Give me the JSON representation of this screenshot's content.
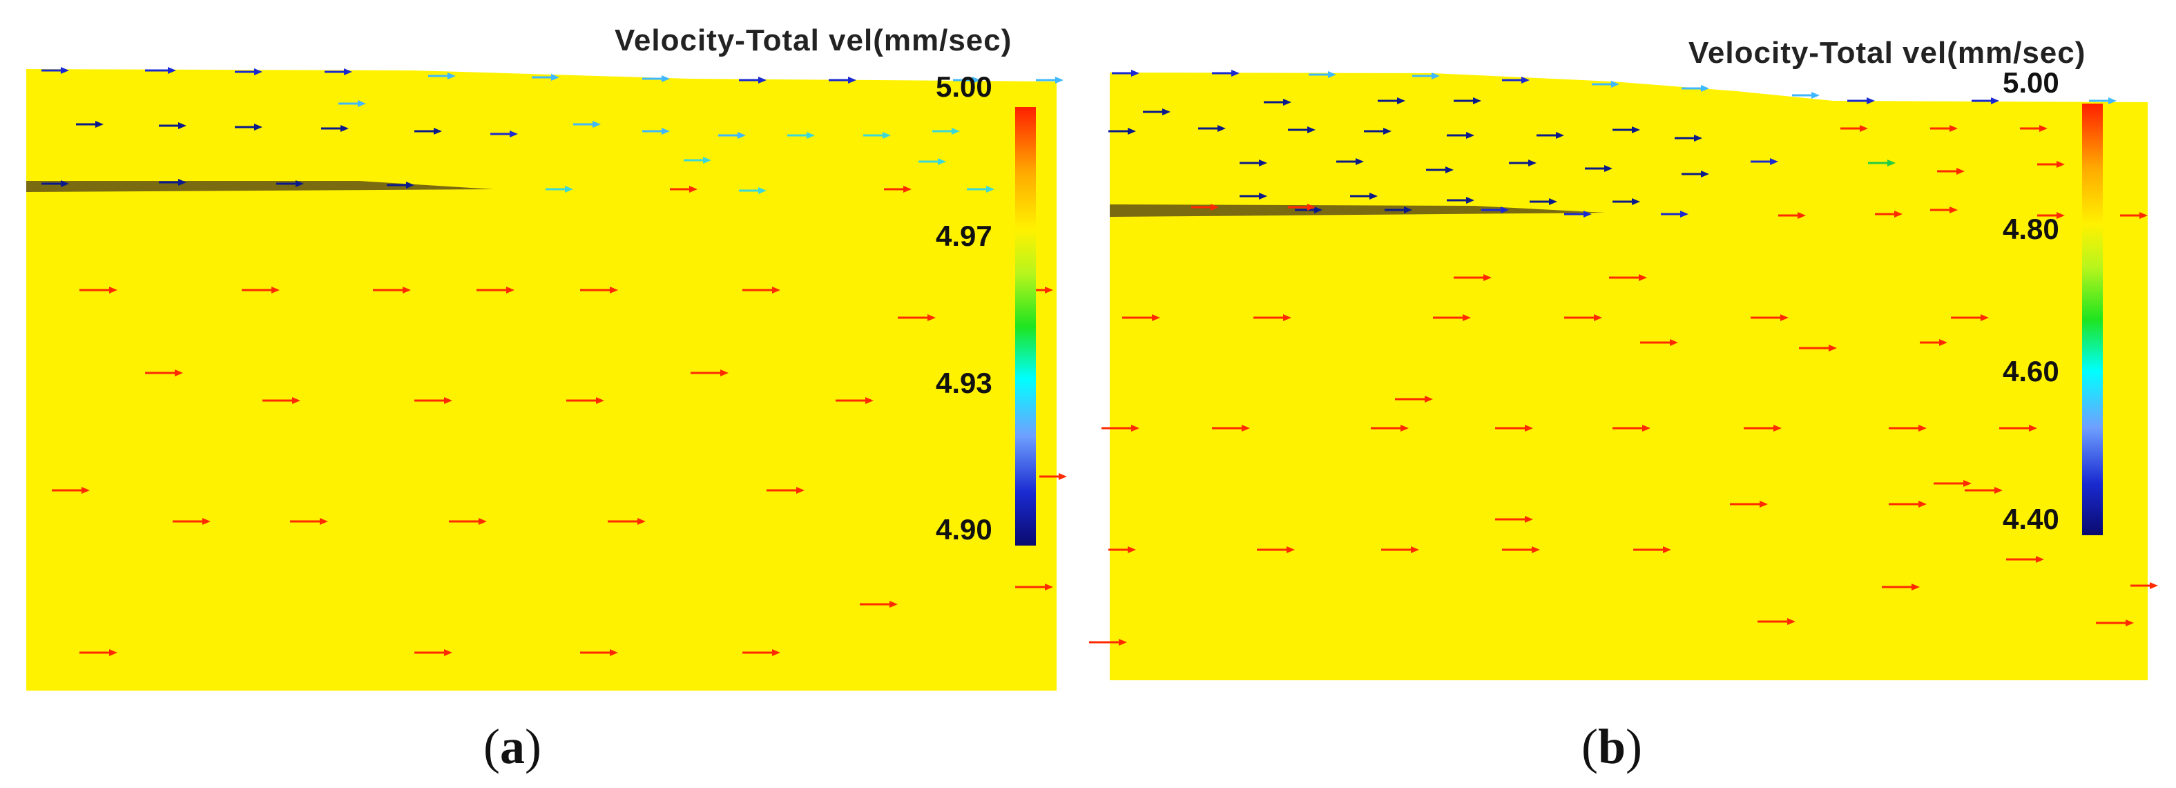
{
  "panels": [
    {
      "id": "a",
      "legend_title": "Velocity-Total vel(mm/sec)",
      "ticks": [
        "5.00",
        "4.97",
        "4.93",
        "4.90"
      ],
      "caption_letter": "a",
      "field_color": "#fff200"
    },
    {
      "id": "b",
      "legend_title": "Velocity-Total vel(mm/sec)",
      "ticks": [
        "5.00",
        "4.80",
        "4.60",
        "4.40"
      ],
      "caption_letter": "b",
      "field_color": "#fff200"
    }
  ],
  "colorscale": [
    "#0a0a6e",
    "#1a2ad0",
    "#3fa7ff",
    "#43d4ff",
    "#00ffff",
    "#1fe41f",
    "#b7f51d",
    "#fff200",
    "#ffb000",
    "#ff6a00",
    "#ff2200"
  ]
}
